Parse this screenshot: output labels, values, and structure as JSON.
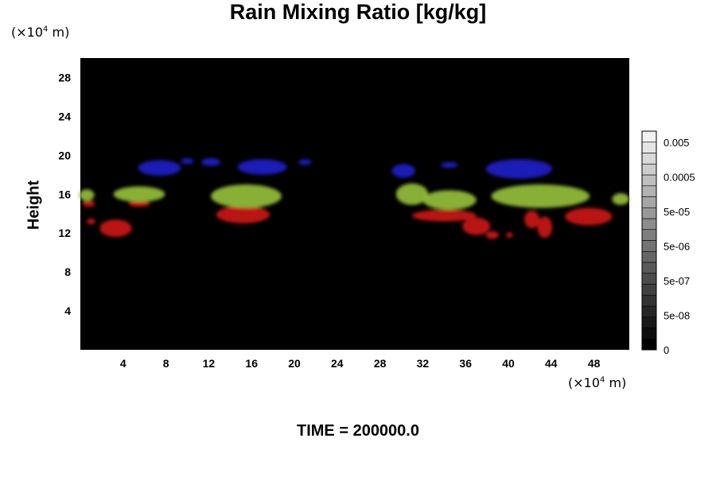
{
  "chart_data": {
    "type": "heatmap",
    "title": "Rain Mixing Ratio [kg/kg]",
    "xlabel": "",
    "ylabel": "Height",
    "x_unit": "(×10⁴ m)",
    "y_unit": "(×10⁴ m)",
    "xlim": [
      0,
      51.3
    ],
    "ylim": [
      0,
      30
    ],
    "x_ticks": [
      4,
      8,
      12,
      16,
      20,
      24,
      28,
      32,
      36,
      40,
      44,
      48
    ],
    "y_ticks": [
      4,
      8,
      12,
      16,
      20,
      24,
      28
    ],
    "background": "#000000",
    "colorbar": {
      "tick_labels": [
        "0.005",
        "0.0005",
        "5e-05",
        "5e-06",
        "5e-07",
        "5e-08",
        "0"
      ],
      "levels": 20,
      "low_color": "#000000",
      "high_color": "#f2f2f2"
    },
    "regions": [
      {
        "layer": "top",
        "color": "#1a1fc0",
        "cx": 7.4,
        "cy": 18.7,
        "rx": 2.0,
        "ry": 0.8
      },
      {
        "layer": "top",
        "color": "#1a1fc0",
        "cx": 10.0,
        "cy": 19.4,
        "rx": 0.6,
        "ry": 0.3
      },
      {
        "layer": "top",
        "color": "#1a1fc0",
        "cx": 12.2,
        "cy": 19.3,
        "rx": 0.9,
        "ry": 0.4
      },
      {
        "layer": "top",
        "color": "#1a1fc0",
        "cx": 17.0,
        "cy": 18.8,
        "rx": 2.3,
        "ry": 0.8
      },
      {
        "layer": "top",
        "color": "#1a1fc0",
        "cx": 21.0,
        "cy": 19.3,
        "rx": 0.6,
        "ry": 0.3
      },
      {
        "layer": "top",
        "color": "#1a1fc0",
        "cx": 30.2,
        "cy": 18.4,
        "rx": 1.1,
        "ry": 0.7
      },
      {
        "layer": "top",
        "color": "#1a1fc0",
        "cx": 34.5,
        "cy": 19.0,
        "rx": 0.8,
        "ry": 0.3
      },
      {
        "layer": "top",
        "color": "#1a1fc0",
        "cx": 41.0,
        "cy": 18.6,
        "rx": 3.1,
        "ry": 1.0
      },
      {
        "layer": "middle",
        "color": "#8fb83a",
        "cx": 0.6,
        "cy": 15.9,
        "rx": 0.7,
        "ry": 0.6
      },
      {
        "layer": "middle",
        "color": "#8fb83a",
        "cx": 5.5,
        "cy": 16.0,
        "rx": 2.4,
        "ry": 0.8
      },
      {
        "layer": "middle",
        "color": "#8fb83a",
        "cx": 15.5,
        "cy": 15.8,
        "rx": 3.3,
        "ry": 1.2
      },
      {
        "layer": "middle",
        "color": "#8fb83a",
        "cx": 31.0,
        "cy": 16.0,
        "rx": 1.5,
        "ry": 1.1
      },
      {
        "layer": "middle",
        "color": "#8fb83a",
        "cx": 34.5,
        "cy": 15.4,
        "rx": 2.5,
        "ry": 1.0
      },
      {
        "layer": "middle",
        "color": "#8fb83a",
        "cx": 43.0,
        "cy": 15.8,
        "rx": 4.6,
        "ry": 1.2
      },
      {
        "layer": "middle",
        "color": "#8fb83a",
        "cx": 50.5,
        "cy": 15.5,
        "rx": 0.8,
        "ry": 0.6
      },
      {
        "layer": "bottom",
        "color": "#c31414",
        "cx": 3.3,
        "cy": 12.5,
        "rx": 1.5,
        "ry": 0.9
      },
      {
        "layer": "bottom",
        "color": "#c31414",
        "cx": 0.8,
        "cy": 15.0,
        "rx": 0.6,
        "ry": 0.3
      },
      {
        "layer": "bottom",
        "color": "#c31414",
        "cx": 1.0,
        "cy": 13.2,
        "rx": 0.4,
        "ry": 0.3
      },
      {
        "layer": "bottom",
        "color": "#c31414",
        "cx": 5.5,
        "cy": 15.0,
        "rx": 1.0,
        "ry": 0.3
      },
      {
        "layer": "bottom",
        "color": "#c31414",
        "cx": 15.2,
        "cy": 13.9,
        "rx": 2.5,
        "ry": 0.9
      },
      {
        "layer": "bottom",
        "color": "#c31414",
        "cx": 34.0,
        "cy": 13.8,
        "rx": 3.0,
        "ry": 0.6
      },
      {
        "layer": "bottom",
        "color": "#c31414",
        "cx": 37.0,
        "cy": 12.7,
        "rx": 1.3,
        "ry": 0.9
      },
      {
        "layer": "bottom",
        "color": "#c31414",
        "cx": 38.5,
        "cy": 11.8,
        "rx": 0.6,
        "ry": 0.4
      },
      {
        "layer": "bottom",
        "color": "#c31414",
        "cx": 40.1,
        "cy": 11.8,
        "rx": 0.3,
        "ry": 0.3
      },
      {
        "layer": "bottom",
        "color": "#c31414",
        "cx": 42.2,
        "cy": 13.4,
        "rx": 0.7,
        "ry": 0.9
      },
      {
        "layer": "bottom",
        "color": "#c31414",
        "cx": 43.4,
        "cy": 12.6,
        "rx": 0.7,
        "ry": 1.1
      },
      {
        "layer": "bottom",
        "color": "#c31414",
        "cx": 47.5,
        "cy": 13.7,
        "rx": 2.2,
        "ry": 0.9
      }
    ]
  },
  "footer": {
    "time_text": "TIME = 200000.0"
  }
}
